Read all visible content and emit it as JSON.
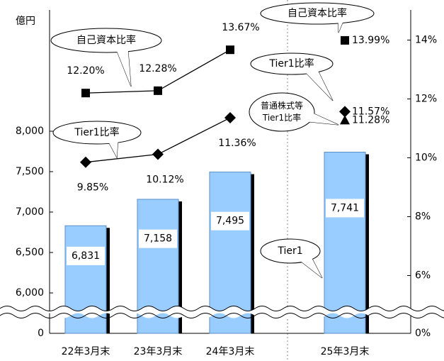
{
  "chart_data": {
    "type": "bar",
    "y_label": "億円",
    "categories": [
      "22年3月末",
      "23年3月末",
      "24年3月末",
      "25年3月末"
    ],
    "series": [
      {
        "name": "Tier1",
        "type": "bar",
        "color": "#99ccff",
        "values": [
          6831,
          7158,
          7495,
          7741
        ],
        "value_labels": [
          "6,831",
          "7,158",
          "7,495",
          "7,741"
        ]
      },
      {
        "name": "自己資本比率",
        "type": "line",
        "marker": "square",
        "axis": "y2",
        "color": "#000000",
        "values": [
          12.2,
          12.28,
          13.67,
          13.99
        ],
        "value_labels": [
          "12.20%",
          "12.28%",
          "13.67%",
          "13.99%"
        ]
      },
      {
        "name": "Tier1比率",
        "type": "line",
        "marker": "diamond",
        "axis": "y2",
        "color": "#000000",
        "values": [
          9.85,
          10.12,
          11.36,
          11.57
        ],
        "value_labels": [
          "9.85%",
          "10.12%",
          "11.36%",
          "11.57%"
        ]
      },
      {
        "name": [
          "普通株式等",
          "Tier1比率"
        ],
        "type": "line",
        "marker": "triangle",
        "axis": "y2",
        "color": "#000000",
        "values": [
          null,
          null,
          null,
          11.28
        ],
        "value_labels": [
          null,
          null,
          null,
          "11.28%"
        ]
      }
    ],
    "ylim": [
      0,
      9500
    ],
    "yticks": [
      0,
      {
        "value": 6000,
        "label": "6,000"
      },
      {
        "value": 6500,
        "label": "6,500"
      },
      {
        "value": 7000,
        "label": "7,000"
      },
      {
        "value": 7500,
        "label": "7,500"
      },
      {
        "value": 8000,
        "label": "8,000"
      }
    ],
    "y2lim": [
      0,
      15
    ],
    "y2ticks": [
      {
        "value": 0,
        "label": "0%"
      },
      {
        "value": 6,
        "label": "6%"
      },
      {
        "value": 8,
        "label": "8%"
      },
      {
        "value": 10,
        "label": "10%"
      },
      {
        "value": 12,
        "label": "12%"
      },
      {
        "value": 14,
        "label": "14%"
      }
    ]
  }
}
